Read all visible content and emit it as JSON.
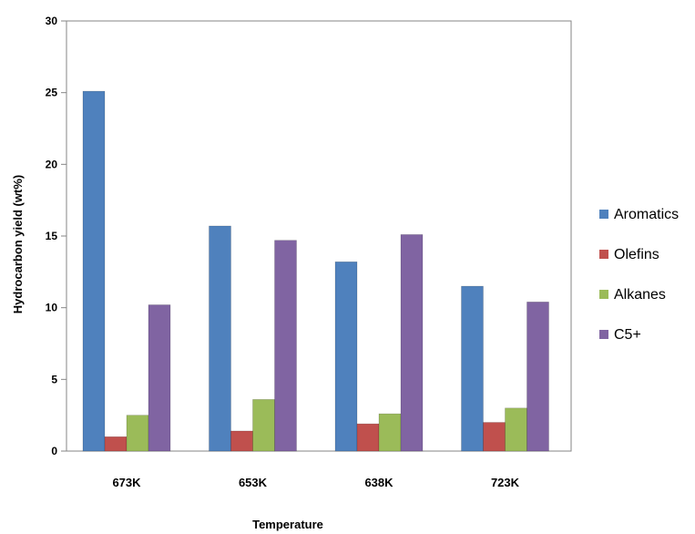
{
  "chart_data": {
    "type": "bar",
    "title": "",
    "xlabel": "Temperature",
    "ylabel": "Hydrocarbon yield (wt%)",
    "ylim": [
      0,
      30
    ],
    "yticks": [
      0,
      5,
      10,
      15,
      20,
      25,
      30
    ],
    "grid": false,
    "legend_position": "right",
    "categories": [
      "673K",
      "653K",
      "638K",
      "723K"
    ],
    "series": [
      {
        "name": "Aromatics",
        "color": "#4f81bd",
        "values": [
          25.1,
          15.7,
          13.2,
          11.5
        ]
      },
      {
        "name": "Olefins",
        "color": "#c0504d",
        "values": [
          1.0,
          1.4,
          1.9,
          2.0
        ]
      },
      {
        "name": "Alkanes",
        "color": "#9bbb59",
        "values": [
          2.5,
          3.6,
          2.6,
          3.0
        ]
      },
      {
        "name": "C5+",
        "color": "#8064a2",
        "values": [
          10.2,
          14.7,
          15.1,
          10.4
        ]
      }
    ]
  }
}
